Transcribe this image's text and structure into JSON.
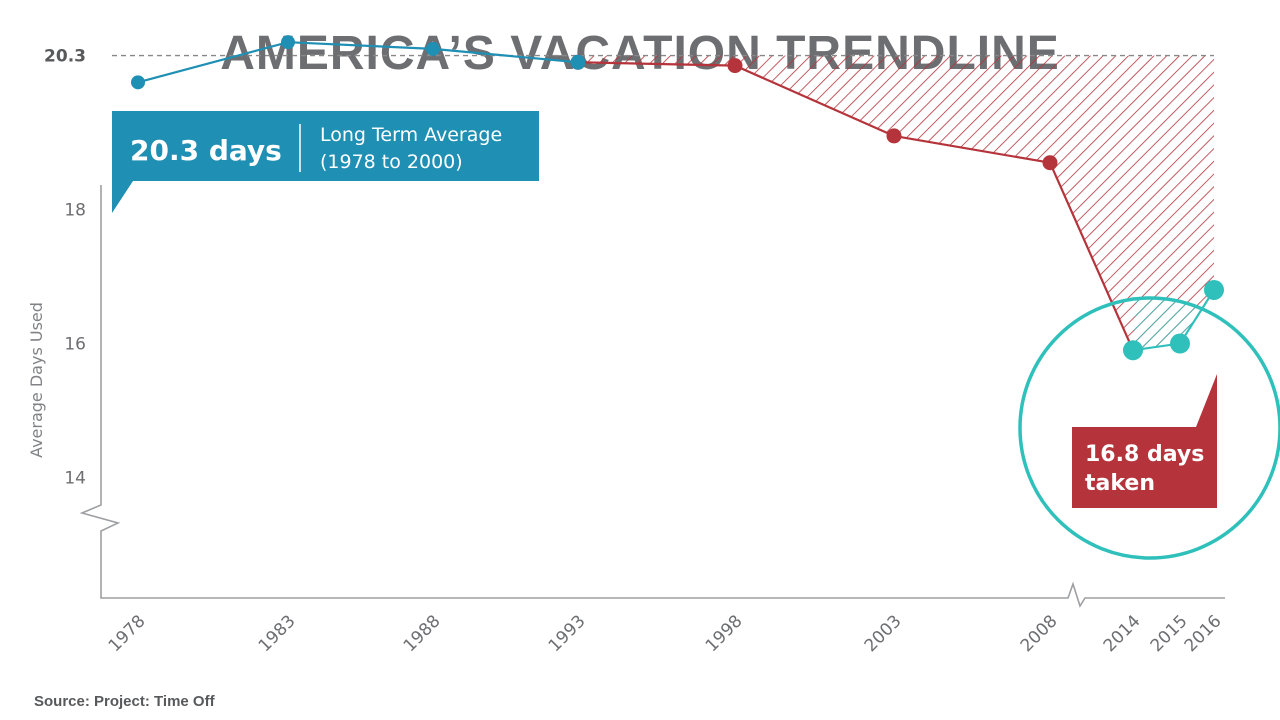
{
  "title": "AMERICA’S VACATION TRENDLINE",
  "source": "Source: Project: Time Off",
  "colors": {
    "historic": "#1f8fb4",
    "decline": "#b5343b",
    "recent": "#2fc0bb",
    "text": "#6d6e71",
    "axis": "#9d9fa2"
  },
  "chart_data": {
    "type": "line",
    "ylabel": "Average Days Used",
    "xlabel": "",
    "ylim": [
      12.2,
      21.0
    ],
    "y_ticks": [
      "14",
      "16",
      "18",
      "20.3"
    ],
    "y_axis_break": true,
    "x_axis_break": true,
    "categories": [
      "1978",
      "1983",
      "1988",
      "1993",
      "1998",
      "2003",
      "2008",
      "2014",
      "2015",
      "2016"
    ],
    "series": [
      {
        "values": [
          19.9,
          20.5,
          20.4,
          20.2,
          null,
          null,
          null,
          null,
          null,
          null
        ]
      },
      {
        "values": [
          null,
          null,
          null,
          20.2,
          20.15,
          19.1,
          18.7,
          null,
          null,
          null
        ]
      },
      {
        "values": [
          null,
          null,
          null,
          null,
          null,
          null,
          null,
          15.9,
          16.0,
          16.8
        ]
      }
    ],
    "decline_connector": [
      18.7,
      15.9
    ],
    "reference_line": {
      "value": 20.3
    },
    "annotations": {
      "average": {
        "value": "20.3 days",
        "label_line1": "Long Term Average",
        "label_line2": "(1978 to 2000)"
      },
      "taken": {
        "line1": "16.8 days",
        "line2": "taken"
      }
    }
  }
}
